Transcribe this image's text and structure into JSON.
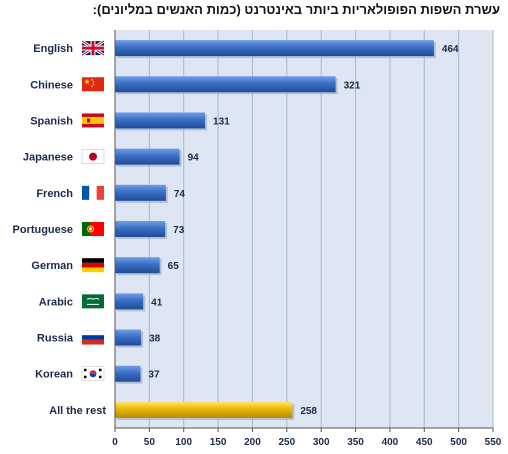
{
  "chart_data": {
    "type": "bar",
    "orientation": "horizontal",
    "title": "עשרת השפות הפופולאריות ביותר באינטרנט (כמות האנשים במליונים):",
    "categories": [
      "English",
      "Chinese",
      "Spanish",
      "Japanese",
      "French",
      "Portuguese",
      "German",
      "Arabic",
      "Russia",
      "Korean",
      "All the rest"
    ],
    "values": [
      464,
      321,
      131,
      94,
      74,
      73,
      65,
      41,
      38,
      37,
      258
    ],
    "flags": [
      "uk-flag-icon",
      "china-flag-icon",
      "spain-flag-icon",
      "japan-flag-icon",
      "france-flag-icon",
      "portugal-flag-icon",
      "germany-flag-icon",
      "saudi-arabia-flag-icon",
      "russia-flag-icon",
      "south-korea-flag-icon",
      ""
    ],
    "xlim": [
      0,
      550
    ],
    "xticks": [
      0,
      50,
      100,
      150,
      200,
      250,
      300,
      350,
      400,
      450,
      500,
      550
    ],
    "grid": true,
    "colors": {
      "bar": "#3a6fc4",
      "bar_highlight": "#e0b000",
      "plot_background": "#dde6f2",
      "grid": "#a8b8d0"
    }
  }
}
